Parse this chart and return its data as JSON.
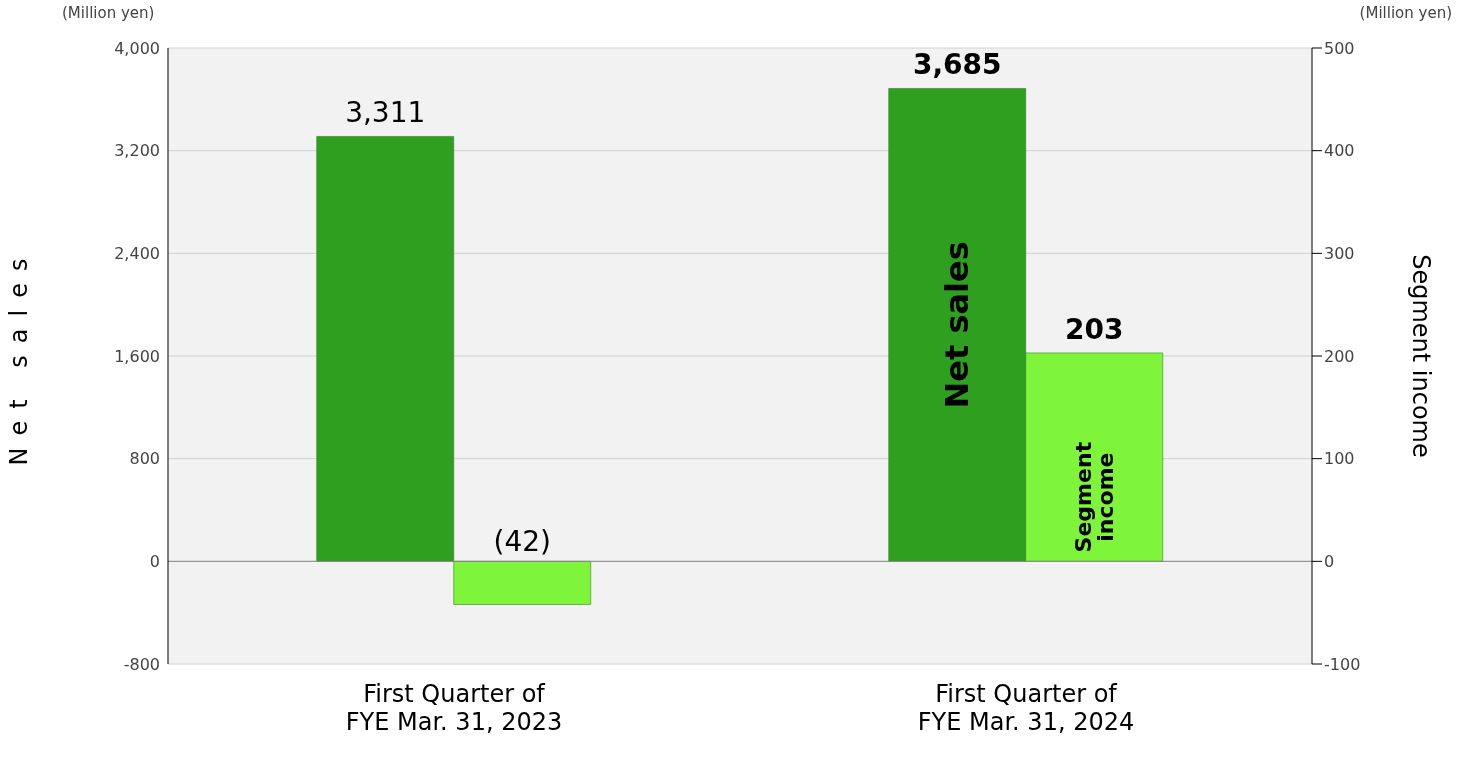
{
  "chart_data": {
    "type": "bar",
    "categories": [
      "First Quarter of FYE Mar. 31, 2023",
      "First Quarter of FYE Mar. 31, 2024"
    ],
    "series": [
      {
        "name": "Net sales",
        "color": "#2f9f1f",
        "values": [
          3311,
          3685
        ],
        "value_labels": [
          "3,311",
          "3,685"
        ]
      },
      {
        "name": "Segment income",
        "color": "#7ef53a",
        "axis": "y2",
        "values": [
          -42,
          203
        ],
        "value_labels": [
          "(42)",
          "203"
        ]
      }
    ],
    "ylabel": "Net sales",
    "y2label": "Segment income",
    "ylim": [
      -800,
      4000
    ],
    "yticks": [
      -800,
      0,
      {
        "value": 800,
        "label": "800"
      },
      {
        "value": 1600,
        "label": "1,600"
      },
      {
        "value": 2400,
        "label": "2,400"
      },
      {
        "value": 3200,
        "label": "3,200"
      },
      {
        "value": 4000,
        "label": "4,000"
      }
    ],
    "y2lim": [
      -100,
      500
    ],
    "y2ticks": [
      -100,
      0,
      100,
      200,
      300,
      400,
      500
    ],
    "grid": "y",
    "annotations": [
      "(Million yen)",
      "(Million yen)"
    ]
  }
}
